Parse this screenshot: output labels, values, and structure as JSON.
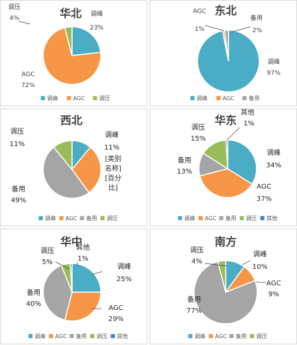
{
  "colors": {
    "peak": "#4BACC6",
    "agc": "#F79646",
    "standby": "#A5A5A5",
    "voltage": "#9BBB59",
    "other": "#4F81BD"
  },
  "chart_data": [
    {
      "type": "pie",
      "title": "华北",
      "slices": [
        {
          "name": "调峰",
          "value": 23,
          "label": "23%",
          "color": "#4BACC6"
        },
        {
          "name": "AGC",
          "value": 72,
          "label": "72%",
          "color": "#F79646"
        },
        {
          "name": "调压",
          "value": 4,
          "label": "4%",
          "color": "#9BBB59"
        }
      ],
      "legend": [
        "调峰",
        "AGC",
        "调压"
      ]
    },
    {
      "type": "pie",
      "title": "东北",
      "slices": [
        {
          "name": "调峰",
          "value": 97,
          "label": "97%",
          "color": "#4BACC6"
        },
        {
          "name": "AGC",
          "value": 1,
          "label": "1%",
          "color": "#F79646"
        },
        {
          "name": "备用",
          "value": 2,
          "label": "2%",
          "color": "#A5A5A5"
        }
      ],
      "legend": [
        "调峰",
        "AGC",
        "备用"
      ]
    },
    {
      "type": "pie",
      "title": "西北",
      "slices": [
        {
          "name": "调峰",
          "value": 11,
          "label": "11%",
          "color": "#4BACC6"
        },
        {
          "name": "AGC",
          "value": 29,
          "label": "[百分比]",
          "category_text": "[类别名称]",
          "color": "#F79646"
        },
        {
          "name": "备用",
          "value": 49,
          "label": "49%",
          "color": "#A5A5A5"
        },
        {
          "name": "调压",
          "value": 11,
          "label": "11%",
          "color": "#9BBB59"
        }
      ],
      "legend": [
        "调峰",
        "AGC",
        "备用",
        "调压"
      ]
    },
    {
      "type": "pie",
      "title": "华东",
      "slices": [
        {
          "name": "调峰",
          "value": 34,
          "label": "34%",
          "color": "#4BACC6"
        },
        {
          "name": "AGC",
          "value": 37,
          "label": "37%",
          "color": "#F79646"
        },
        {
          "name": "备用",
          "value": 13,
          "label": "13%",
          "color": "#A5A5A5"
        },
        {
          "name": "调压",
          "value": 15,
          "label": "15%",
          "color": "#9BBB59"
        },
        {
          "name": "其他",
          "value": 1,
          "label": "1%",
          "color": "#4F81BD"
        }
      ],
      "legend": [
        "调峰",
        "AGC",
        "备用",
        "调压",
        "其他"
      ]
    },
    {
      "type": "pie",
      "title": "华中",
      "slices": [
        {
          "name": "调峰",
          "value": 25,
          "label": "25%",
          "color": "#4BACC6"
        },
        {
          "name": "AGC",
          "value": 29,
          "label": "29%",
          "color": "#F79646"
        },
        {
          "name": "备用",
          "value": 40,
          "label": "40%",
          "color": "#A5A5A5"
        },
        {
          "name": "调压",
          "value": 5,
          "label": "5%",
          "color": "#9BBB59"
        },
        {
          "name": "其他",
          "value": 1,
          "label": "1%",
          "color": "#4F81BD"
        }
      ],
      "legend": [
        "调峰",
        "AGC",
        "备用",
        "调压",
        "其他"
      ]
    },
    {
      "type": "pie",
      "title": "南方",
      "slices": [
        {
          "name": "调峰",
          "value": 10,
          "label": "10%",
          "color": "#4BACC6"
        },
        {
          "name": "AGC",
          "value": 9,
          "label": "9%",
          "color": "#F79646"
        },
        {
          "name": "备用",
          "value": 77,
          "label": "77%",
          "color": "#A5A5A5"
        },
        {
          "name": "调压",
          "value": 4,
          "label": "4%",
          "color": "#9BBB59"
        }
      ],
      "legend": [
        "调峰",
        "AGC",
        "备用",
        "调压"
      ]
    }
  ]
}
